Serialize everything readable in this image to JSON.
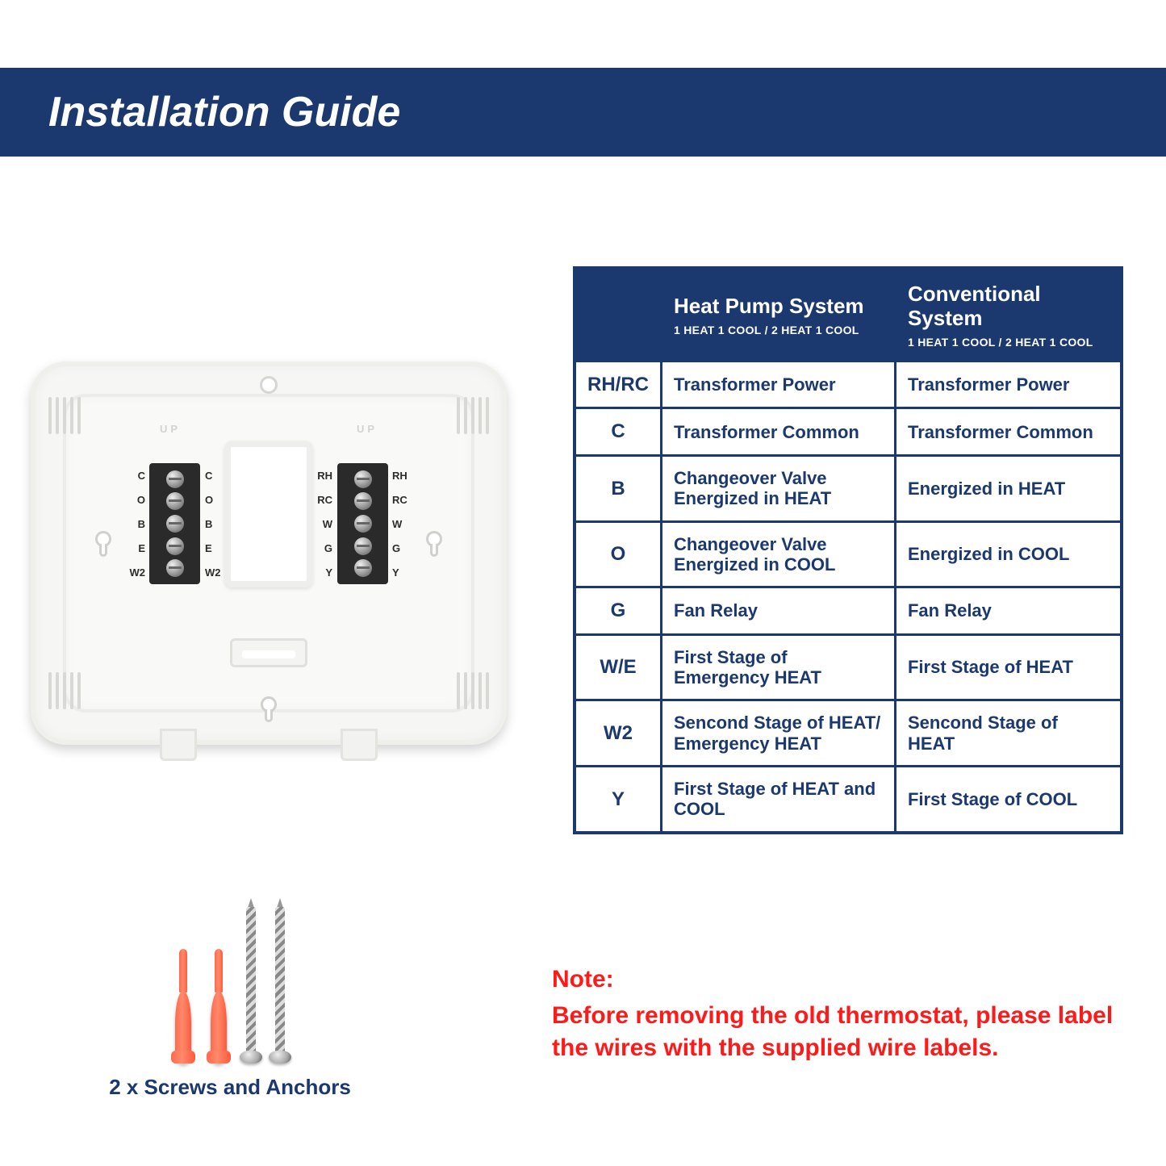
{
  "colors": {
    "band": "#1b386f",
    "table_border": "#1b386f",
    "table_text": "#1b386f",
    "note_text": "#ff1a1a",
    "anchor": "#ff6a4d",
    "background": "#ffffff"
  },
  "header": {
    "title": "Installation Guide"
  },
  "backplate": {
    "up_text": "UP",
    "left_terminal_labels": [
      "C",
      "O",
      "B",
      "E",
      "W2"
    ],
    "right_terminal_labels": [
      "RH",
      "RC",
      "W",
      "G",
      "Y"
    ]
  },
  "table": {
    "headers": {
      "code": "",
      "hp_title": "Heat Pump System",
      "hp_sub": "1 HEAT 1 COOL / 2 HEAT 1 COOL",
      "cv_title": "Conventional System",
      "cv_sub": "1 HEAT 1 COOL / 2 HEAT 1 COOL"
    },
    "rows": [
      {
        "code": "RH/RC",
        "hp": "Transformer Power",
        "cv": "Transformer Power"
      },
      {
        "code": "C",
        "hp": "Transformer Common",
        "cv": "Transformer Common"
      },
      {
        "code": "B",
        "hp": "Changeover Valve Energized in HEAT",
        "cv": "Energized in HEAT"
      },
      {
        "code": "O",
        "hp": "Changeover Valve Energized in COOL",
        "cv": "Energized in COOL"
      },
      {
        "code": "G",
        "hp": "Fan Relay",
        "cv": "Fan Relay"
      },
      {
        "code": "W/E",
        "hp": "First Stage of Emergency HEAT",
        "cv": "First Stage of HEAT"
      },
      {
        "code": "W2",
        "hp": "Sencond Stage of HEAT/ Emergency HEAT",
        "cv": "Sencond Stage of HEAT"
      },
      {
        "code": "Y",
        "hp": "First Stage of HEAT and COOL",
        "cv": "First Stage of COOL"
      }
    ]
  },
  "hardware": {
    "caption": "2 x Screws and Anchors"
  },
  "note": {
    "label": "Note:",
    "body": "Before removing the old thermostat, please label the wires with the supplied wire labels."
  }
}
